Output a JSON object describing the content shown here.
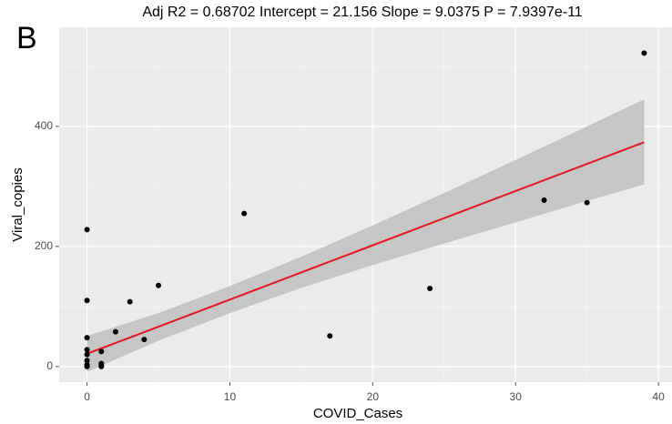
{
  "chart_data": {
    "type": "scatter",
    "panel_label": "B",
    "title": "Adj R2 =  0.68702 Intercept = 21.156  Slope = 9.0375  P = 7.9397e-11",
    "x_label": "COVID_Cases",
    "y_label": "Viral_copies",
    "x": [
      0,
      0,
      0,
      0,
      0,
      0,
      0,
      0,
      1,
      1,
      1,
      1,
      2,
      3,
      4,
      5,
      11,
      17,
      24,
      32,
      35,
      39
    ],
    "values": [
      228,
      110,
      48,
      28,
      20,
      10,
      3,
      0,
      25,
      5,
      0,
      2,
      58,
      108,
      45,
      135,
      255,
      51,
      130,
      277,
      273,
      522
    ],
    "color": "#000000",
    "fit": {
      "x": [
        0,
        39
      ],
      "values": [
        21.2,
        373.6
      ],
      "color": "#e8141d"
    },
    "band": {
      "x": [
        0,
        5,
        10,
        15,
        20,
        25,
        30,
        35,
        39
      ],
      "lower": [
        -9,
        43,
        89,
        131,
        169,
        205,
        240,
        276,
        303
      ],
      "upper": [
        51,
        89,
        134,
        183,
        235,
        289,
        344,
        400,
        445
      ],
      "color": "#bfbfbf"
    },
    "xlim": [
      -1.95,
      40.95
    ],
    "xticks": [
      0,
      10,
      20,
      30,
      40
    ],
    "xminor": [
      5,
      15,
      25,
      35
    ],
    "ylim": [
      -26,
      565
    ],
    "yticks": [
      0,
      200,
      400
    ],
    "yminor": [
      100,
      300,
      500
    ],
    "grid": true
  }
}
